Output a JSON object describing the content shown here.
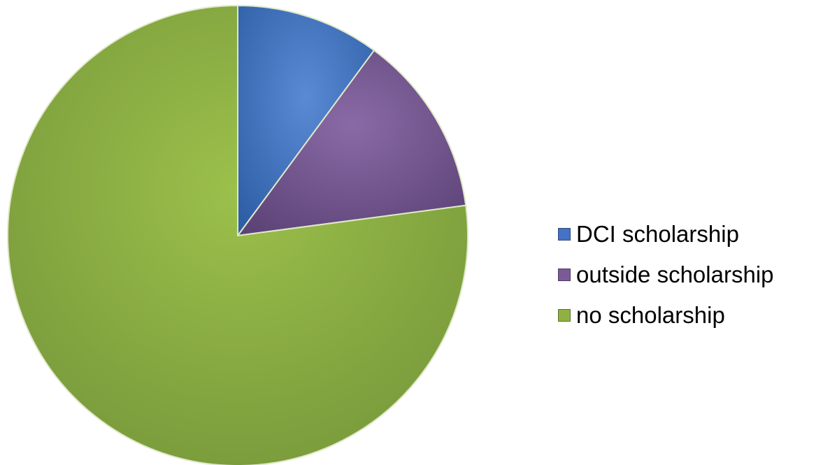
{
  "chart_data": {
    "type": "pie",
    "title": "",
    "start_angle_deg": 0,
    "direction": "clockwise",
    "legend_position": "right",
    "series": [
      {
        "values": [
          {
            "label": "DCI scholarship",
            "value": 10.1,
            "color": "#4472c4"
          },
          {
            "label": "outside scholarship",
            "value": 12.8,
            "color": "#7a5b97"
          },
          {
            "label": "no scholarship",
            "value": 77.1,
            "color": "#8fb142"
          }
        ]
      }
    ]
  },
  "legend": {
    "items": [
      {
        "label": "DCI scholarship",
        "color": "#4472c4"
      },
      {
        "label": "outside scholarship",
        "color": "#7a5b97"
      },
      {
        "label": "no scholarship",
        "color": "#8fb142"
      }
    ]
  }
}
